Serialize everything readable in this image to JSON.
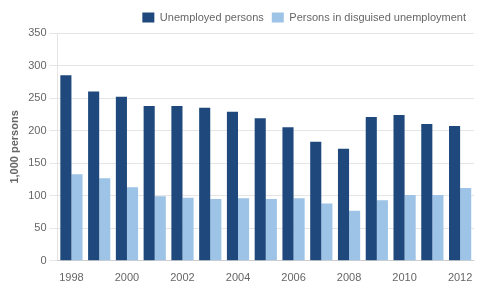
{
  "chart_data": {
    "type": "bar",
    "ylabel": "1,000 persons",
    "categories": [
      "1998",
      null,
      "2000",
      null,
      "2002",
      null,
      "2004",
      null,
      "2006",
      null,
      "2008",
      null,
      "2010",
      null,
      "2012"
    ],
    "series": [
      {
        "name": "Unemployed persons",
        "color": "#1F497D",
        "values": [
          285,
          260,
          252,
          238,
          238,
          235,
          229,
          219,
          205,
          183,
          172,
          221,
          224,
          210,
          207
        ]
      },
      {
        "name": "Persons in disguised unemployment",
        "color": "#9DC3E6",
        "values": [
          133,
          127,
          113,
          99,
          97,
          95,
          96,
          95,
          96,
          88,
          77,
          93,
          101,
          101,
          112
        ]
      }
    ],
    "ylim": [
      0,
      350
    ],
    "yticks": [
      0,
      50,
      100,
      150,
      200,
      250,
      300,
      350
    ],
    "grid": true,
    "legend": "upper right"
  }
}
